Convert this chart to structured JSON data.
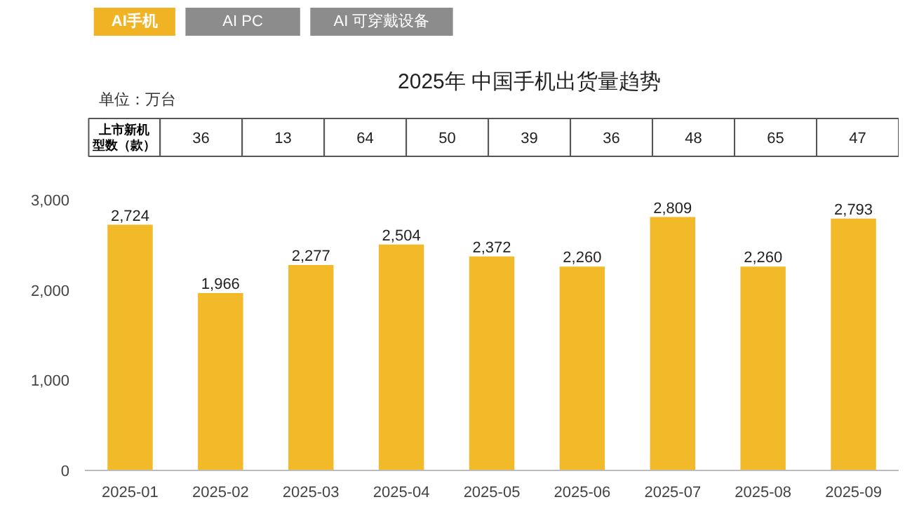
{
  "chart_data": {
    "type": "bar",
    "title": "2025年 中国手机出货量趋势",
    "categories": [
      "2025-01",
      "2025-02",
      "2025-03",
      "2025-04",
      "2025-05",
      "2025-06",
      "2025-07",
      "2025-08",
      "2025-09"
    ],
    "values": [
      2724,
      1966,
      2277,
      2504,
      2372,
      2260,
      2809,
      2260,
      2793
    ],
    "color": "#f2b929",
    "ylim": [
      0,
      3000
    ],
    "yticks": [
      {
        "value": 0,
        "label": "0"
      },
      {
        "value": 1000,
        "label": "1,000"
      },
      {
        "value": 2000,
        "label": "2,000"
      },
      {
        "value": 3000,
        "label": "3,000"
      }
    ],
    "value_labels": [
      "2,724",
      "1,966",
      "2,277",
      "2,504",
      "2,372",
      "2,260",
      "2,809",
      "2,260",
      "2,793"
    ],
    "annotations": [
      "AI手机",
      "AI PC",
      "AI 可穿戴设备",
      "单位：万台",
      "上市新机型数（款）",
      "36",
      "13",
      "64",
      "50",
      "39",
      "36",
      "48",
      "65",
      "47"
    ]
  }
}
